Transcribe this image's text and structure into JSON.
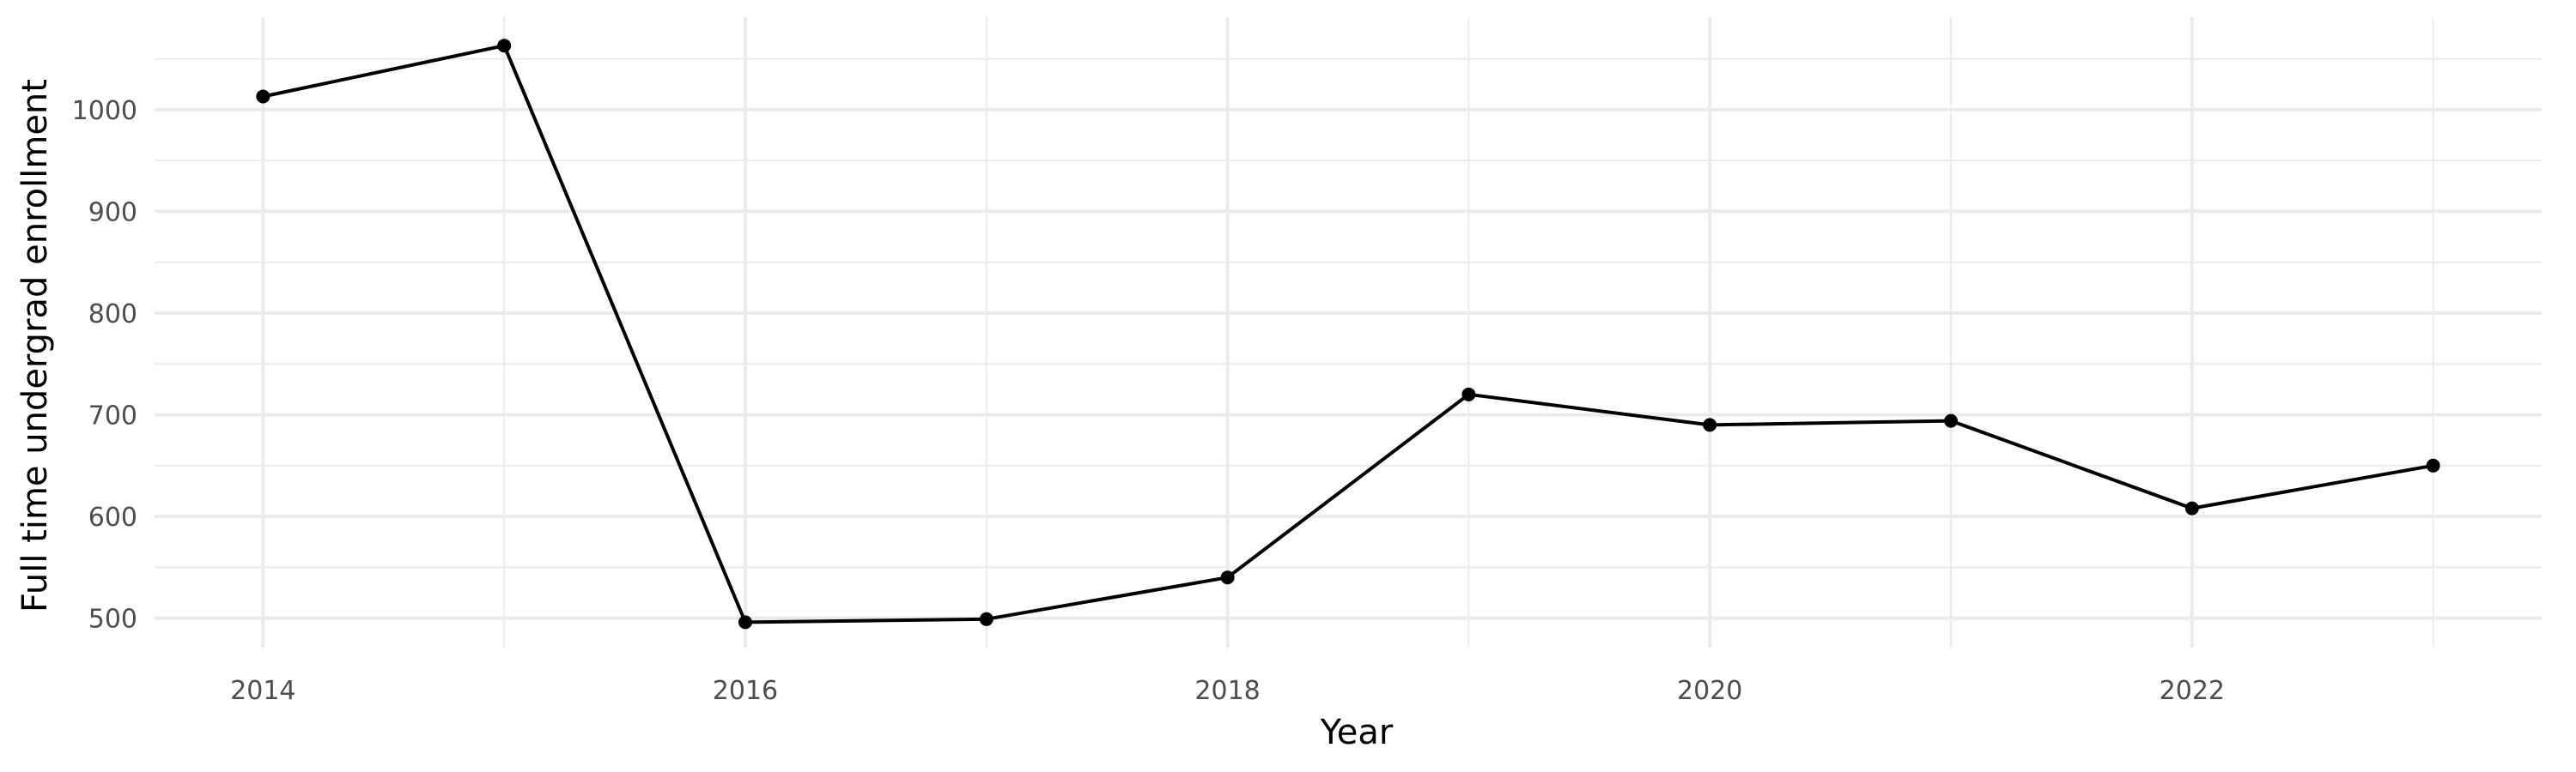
{
  "chart_data": {
    "type": "line",
    "title": "",
    "xlabel": "Year",
    "ylabel": "Full time undergrad enrollment",
    "x": [
      2014,
      2015,
      2016,
      2017,
      2018,
      2019,
      2020,
      2021,
      2022,
      2023
    ],
    "series": [
      {
        "values": [
          1013,
          1063,
          496,
          499,
          540,
          720,
          690,
          694,
          608,
          650
        ]
      }
    ],
    "xlim": [
      2013.55,
      2023.45
    ],
    "ylim": [
      471,
      1091
    ],
    "x_ticks": [
      2014,
      2016,
      2018,
      2020,
      2022
    ],
    "x_tick_labels": [
      "2014",
      "2016",
      "2018",
      "2020",
      "2022"
    ],
    "y_ticks": [
      500,
      600,
      700,
      800,
      900,
      1000
    ],
    "y_tick_labels": [
      "500",
      "600",
      "700",
      "800",
      "900",
      "1000"
    ],
    "grid": true,
    "legend": "none",
    "colors": {
      "line": "#000000",
      "point": "#000000",
      "grid": "#ebebeb",
      "tick_text": "#4d4d4d"
    }
  }
}
